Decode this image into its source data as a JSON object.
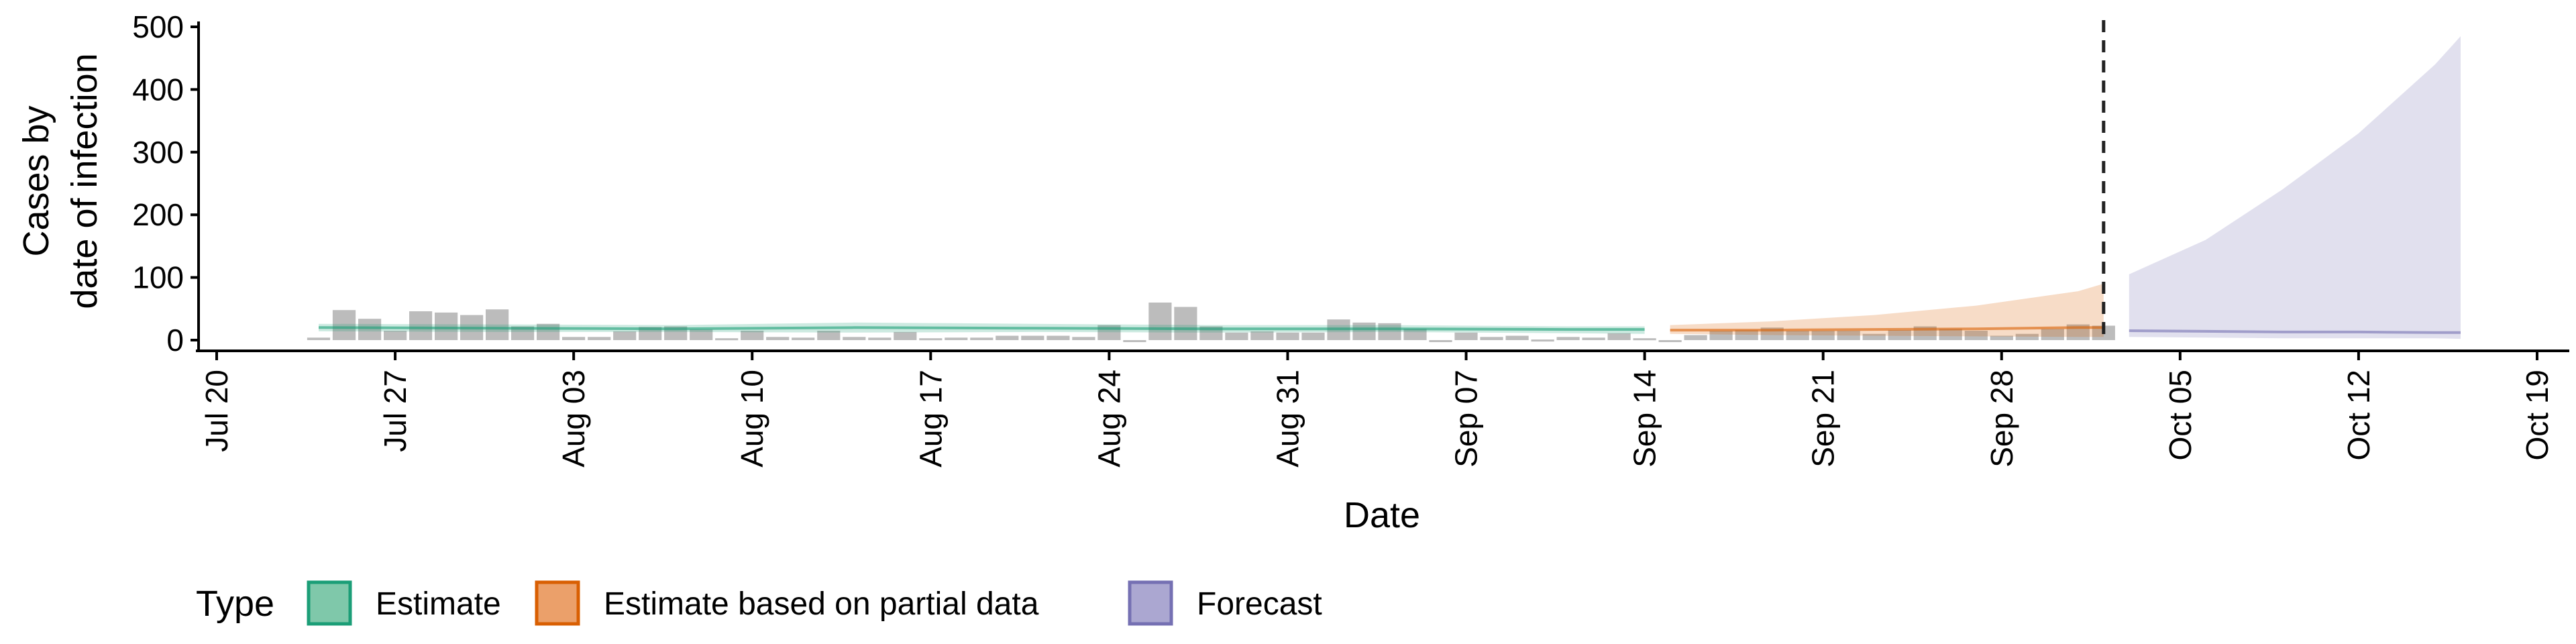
{
  "chart_data": {
    "type": "area",
    "ylabel_lines": [
      "Cases by",
      "date of infection"
    ],
    "xlabel": "Date",
    "ylim": [
      0,
      500
    ],
    "y_ticks": [
      0,
      100,
      200,
      300,
      400,
      500
    ],
    "x_range": [
      "2020-07-20",
      "2020-10-19"
    ],
    "x_ticks": [
      {
        "date": "2020-07-20",
        "label": "Jul 20"
      },
      {
        "date": "2020-07-27",
        "label": "Jul 27"
      },
      {
        "date": "2020-08-03",
        "label": "Aug 03"
      },
      {
        "date": "2020-08-10",
        "label": "Aug 10"
      },
      {
        "date": "2020-08-17",
        "label": "Aug 17"
      },
      {
        "date": "2020-08-24",
        "label": "Aug 24"
      },
      {
        "date": "2020-08-31",
        "label": "Aug 31"
      },
      {
        "date": "2020-09-07",
        "label": "Sep 07"
      },
      {
        "date": "2020-09-14",
        "label": "Sep 14"
      },
      {
        "date": "2020-09-21",
        "label": "Sep 21"
      },
      {
        "date": "2020-09-28",
        "label": "Sep 28"
      },
      {
        "date": "2020-10-05",
        "label": "Oct 05"
      },
      {
        "date": "2020-10-12",
        "label": "Oct 12"
      },
      {
        "date": "2020-10-19",
        "label": "Oct 19"
      }
    ],
    "forecast_line_date": "2020-10-02",
    "grid": false,
    "legend_position": "bottom",
    "legend": {
      "title": "Type",
      "entries": [
        {
          "label": "Estimate",
          "fill": "#7fc8aa",
          "stroke": "#1b9e77"
        },
        {
          "label": "Estimate based on partial data",
          "fill": "#eba06a",
          "stroke": "#d95f02"
        },
        {
          "label": "Forecast",
          "fill": "#aba7d1",
          "stroke": "#7570b3"
        }
      ]
    },
    "colors": {
      "bars": "#a6a6a6",
      "estimate": "#1b9e77",
      "partial": "#d95f02",
      "forecast": "#7570b3"
    },
    "reported_cases": {
      "start_date": "2020-07-24",
      "values": [
        4,
        48,
        34,
        15,
        46,
        44,
        40,
        49,
        22,
        26,
        5,
        5,
        14,
        21,
        22,
        17,
        3,
        15,
        5,
        4,
        15,
        5,
        4,
        13,
        3,
        4,
        4,
        7,
        7,
        7,
        5,
        24,
        0,
        60,
        53,
        22,
        12,
        14,
        12,
        12,
        33,
        28,
        27,
        18,
        0,
        12,
        5,
        7,
        1,
        5,
        4,
        11,
        3,
        0,
        8,
        15,
        16,
        20,
        15,
        15,
        15,
        10,
        16,
        22,
        18,
        15,
        7,
        10,
        18,
        25,
        23
      ]
    },
    "series": [
      {
        "name": "Estimate",
        "x": [
          "2020-07-24",
          "2020-07-31",
          "2020-08-07",
          "2020-08-14",
          "2020-08-21",
          "2020-08-28",
          "2020-09-04",
          "2020-09-11",
          "2020-09-14"
        ],
        "median": [
          20,
          19,
          18,
          20,
          19,
          18,
          18,
          17,
          17
        ],
        "lower": [
          14,
          13,
          13,
          12,
          13,
          12,
          13,
          11,
          10
        ],
        "upper": [
          26,
          25,
          24,
          28,
          26,
          24,
          24,
          22,
          22
        ]
      },
      {
        "name": "Estimate based on partial data",
        "x": [
          "2020-09-15",
          "2020-09-19",
          "2020-09-23",
          "2020-09-27",
          "2020-10-01",
          "2020-10-02"
        ],
        "median": [
          16,
          16,
          17,
          18,
          20,
          20
        ],
        "lower": [
          10,
          8,
          7,
          6,
          5,
          5
        ],
        "upper": [
          24,
          30,
          40,
          55,
          78,
          90
        ]
      },
      {
        "name": "Forecast",
        "x": [
          "2020-10-03",
          "2020-10-06",
          "2020-10-09",
          "2020-10-12",
          "2020-10-15",
          "2020-10-16"
        ],
        "median": [
          15,
          14,
          13,
          13,
          12,
          12
        ],
        "lower": [
          5,
          4,
          3,
          3,
          3,
          2
        ],
        "upper": [
          105,
          160,
          240,
          330,
          440,
          485
        ]
      }
    ]
  }
}
